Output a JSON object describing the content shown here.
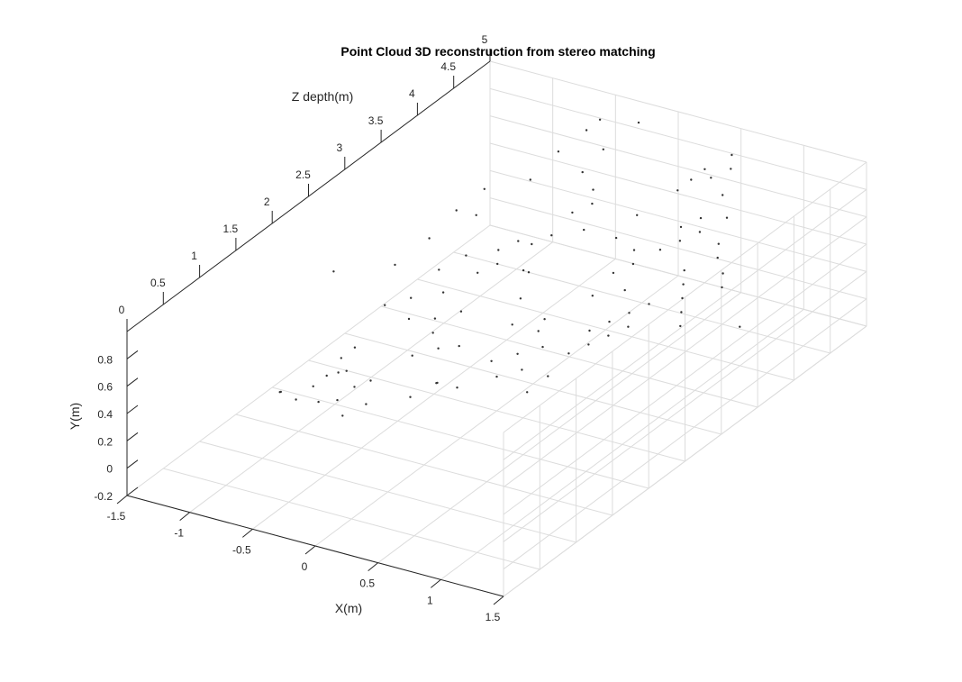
{
  "chart_data": {
    "type": "scatter",
    "projection": "3d",
    "title": "Point Cloud 3D reconstruction from stereo matching",
    "xlabel": "X(m)",
    "ylabel": "Y(m)",
    "zlabel": "Z depth(m)",
    "xlim": [
      -1.5,
      1.5
    ],
    "ylim": [
      -0.2,
      1.0
    ],
    "zlim": [
      0,
      5
    ],
    "xticks": [
      -1.5,
      -1,
      -0.5,
      0,
      0.5,
      1,
      1.5
    ],
    "xtick_labels": [
      "-1.5",
      "-1",
      "-0.5",
      "0",
      "0.5",
      "1",
      "1.5"
    ],
    "yticks": [
      -0.2,
      0,
      0.2,
      0.4,
      0.6,
      0.8
    ],
    "ytick_labels": [
      "-0.2",
      "0",
      "0.2",
      "0.4",
      "0.6",
      "0.8"
    ],
    "zticks": [
      0,
      0.5,
      1,
      1.5,
      2,
      2.5,
      3,
      3.5,
      4,
      4.5,
      5
    ],
    "ztick_labels": [
      "0",
      "0.5",
      "1",
      "1.5",
      "2",
      "2.5",
      "3",
      "3.5",
      "4",
      "4.5",
      "5"
    ],
    "grid": true,
    "marker_color": "#333333",
    "axis_color": "#262626",
    "grid_color": "#dcdcdc",
    "points": [
      [
        -1.2,
        0.0,
        1.6
      ],
      [
        -1.15,
        0.05,
        1.5
      ],
      [
        -1.05,
        0.0,
        1.55
      ],
      [
        -1.0,
        0.05,
        1.7
      ],
      [
        -0.95,
        0.1,
        1.8
      ],
      [
        -0.9,
        0.0,
        1.6
      ],
      [
        -0.85,
        0.12,
        1.9
      ],
      [
        -0.8,
        0.2,
        1.7
      ],
      [
        -0.75,
        0.05,
        1.6
      ],
      [
        -0.7,
        0.1,
        1.75
      ],
      [
        -0.65,
        0.0,
        1.5
      ],
      [
        -0.95,
        0.15,
        2.0
      ],
      [
        -0.9,
        0.2,
        2.1
      ],
      [
        -0.6,
        0.15,
        1.8
      ],
      [
        -0.55,
        0.05,
        1.65
      ],
      [
        -0.4,
        0.0,
        2.0
      ],
      [
        -0.3,
        0.05,
        2.2
      ],
      [
        -0.25,
        0.1,
        2.1
      ],
      [
        -0.2,
        0.0,
        2.3
      ],
      [
        -0.3,
        0.2,
        2.5
      ],
      [
        -0.45,
        0.3,
        2.4
      ],
      [
        -0.5,
        0.2,
        2.2
      ],
      [
        -0.55,
        0.3,
        2.6
      ],
      [
        -0.4,
        0.35,
        2.7
      ],
      [
        -0.35,
        0.25,
        2.3
      ],
      [
        -0.6,
        0.4,
        2.8
      ],
      [
        -0.7,
        0.3,
        2.5
      ],
      [
        -0.8,
        0.35,
        2.7
      ],
      [
        -0.75,
        0.45,
        3.0
      ],
      [
        -0.65,
        0.5,
        3.2
      ],
      [
        -0.5,
        0.45,
        3.1
      ],
      [
        -0.45,
        0.55,
        3.3
      ],
      [
        -0.4,
        0.5,
        3.2
      ],
      [
        -0.35,
        0.6,
        3.4
      ],
      [
        -0.3,
        0.55,
        3.5
      ],
      [
        -0.25,
        0.45,
        3.3
      ],
      [
        -0.2,
        0.6,
        3.6
      ],
      [
        -0.15,
        0.5,
        3.2
      ],
      [
        -0.1,
        0.4,
        3.0
      ],
      [
        -0.05,
        0.3,
        2.8
      ],
      [
        -0.1,
        0.1,
        2.6
      ],
      [
        0.0,
        0.05,
        2.5
      ],
      [
        0.05,
        0.15,
        2.7
      ],
      [
        0.1,
        0.25,
        2.9
      ],
      [
        -0.15,
        0.7,
        3.8
      ],
      [
        -0.1,
        0.8,
        4.0
      ],
      [
        -0.05,
        0.75,
        3.9
      ],
      [
        0.0,
        0.65,
        3.7
      ],
      [
        -0.3,
        0.8,
        4.2
      ],
      [
        -0.25,
        0.9,
        4.4
      ],
      [
        -0.8,
        0.6,
        3.6
      ],
      [
        -0.85,
        0.7,
        3.8
      ],
      [
        -0.9,
        0.65,
        3.5
      ],
      [
        -0.6,
        0.75,
        4.0
      ],
      [
        -0.55,
        0.85,
        4.3
      ],
      [
        -0.5,
        0.9,
        4.6
      ],
      [
        -0.45,
        0.95,
        4.7
      ],
      [
        -1.0,
        0.5,
        3.3
      ],
      [
        -1.1,
        0.4,
        3.0
      ],
      [
        -0.95,
        0.3,
        2.6
      ],
      [
        0.3,
        0.05,
        2.4
      ],
      [
        0.35,
        0.1,
        2.6
      ],
      [
        0.4,
        0.2,
        2.8
      ],
      [
        0.45,
        0.3,
        3.0
      ],
      [
        0.5,
        0.25,
        2.9
      ],
      [
        0.55,
        0.35,
        3.1
      ],
      [
        0.6,
        0.3,
        3.0
      ],
      [
        0.65,
        0.4,
        3.2
      ],
      [
        0.7,
        0.35,
        3.1
      ],
      [
        0.75,
        0.45,
        3.3
      ],
      [
        0.5,
        0.45,
        3.4
      ],
      [
        0.45,
        0.55,
        3.6
      ],
      [
        0.4,
        0.6,
        3.7
      ],
      [
        0.35,
        0.5,
        3.5
      ],
      [
        0.3,
        0.4,
        3.3
      ],
      [
        0.55,
        0.6,
        3.8
      ],
      [
        0.6,
        0.7,
        4.0
      ],
      [
        0.65,
        0.65,
        3.9
      ],
      [
        0.7,
        0.75,
        4.1
      ],
      [
        0.75,
        0.7,
        4.0
      ],
      [
        0.8,
        0.55,
        3.7
      ],
      [
        0.85,
        0.5,
        3.6
      ],
      [
        0.9,
        0.45,
        3.5
      ],
      [
        0.95,
        0.4,
        3.4
      ],
      [
        1.0,
        0.35,
        3.3
      ],
      [
        0.4,
        0.8,
        4.3
      ],
      [
        0.45,
        0.85,
        4.4
      ],
      [
        0.5,
        0.9,
        4.5
      ],
      [
        0.55,
        0.85,
        4.5
      ],
      [
        0.6,
        0.95,
        4.7
      ],
      [
        0.65,
        0.9,
        4.6
      ],
      [
        0.7,
        0.8,
        4.4
      ],
      [
        0.25,
        0.7,
        4.0
      ],
      [
        0.2,
        0.6,
        3.8
      ],
      [
        0.85,
        0.75,
        4.2
      ],
      [
        0.9,
        0.65,
        4.0
      ],
      [
        0.95,
        0.6,
        3.9
      ],
      [
        1.05,
        0.55,
        3.8
      ],
      [
        1.1,
        0.5,
        3.7
      ],
      [
        1.3,
        0.3,
        3.6
      ],
      [
        0.2,
        0.15,
        2.5
      ],
      [
        0.25,
        0.25,
        2.7
      ],
      [
        0.15,
        0.35,
        2.9
      ],
      [
        -1.3,
        0.5,
        2.5
      ],
      [
        -0.2,
        0.95,
        4.8
      ]
    ]
  }
}
